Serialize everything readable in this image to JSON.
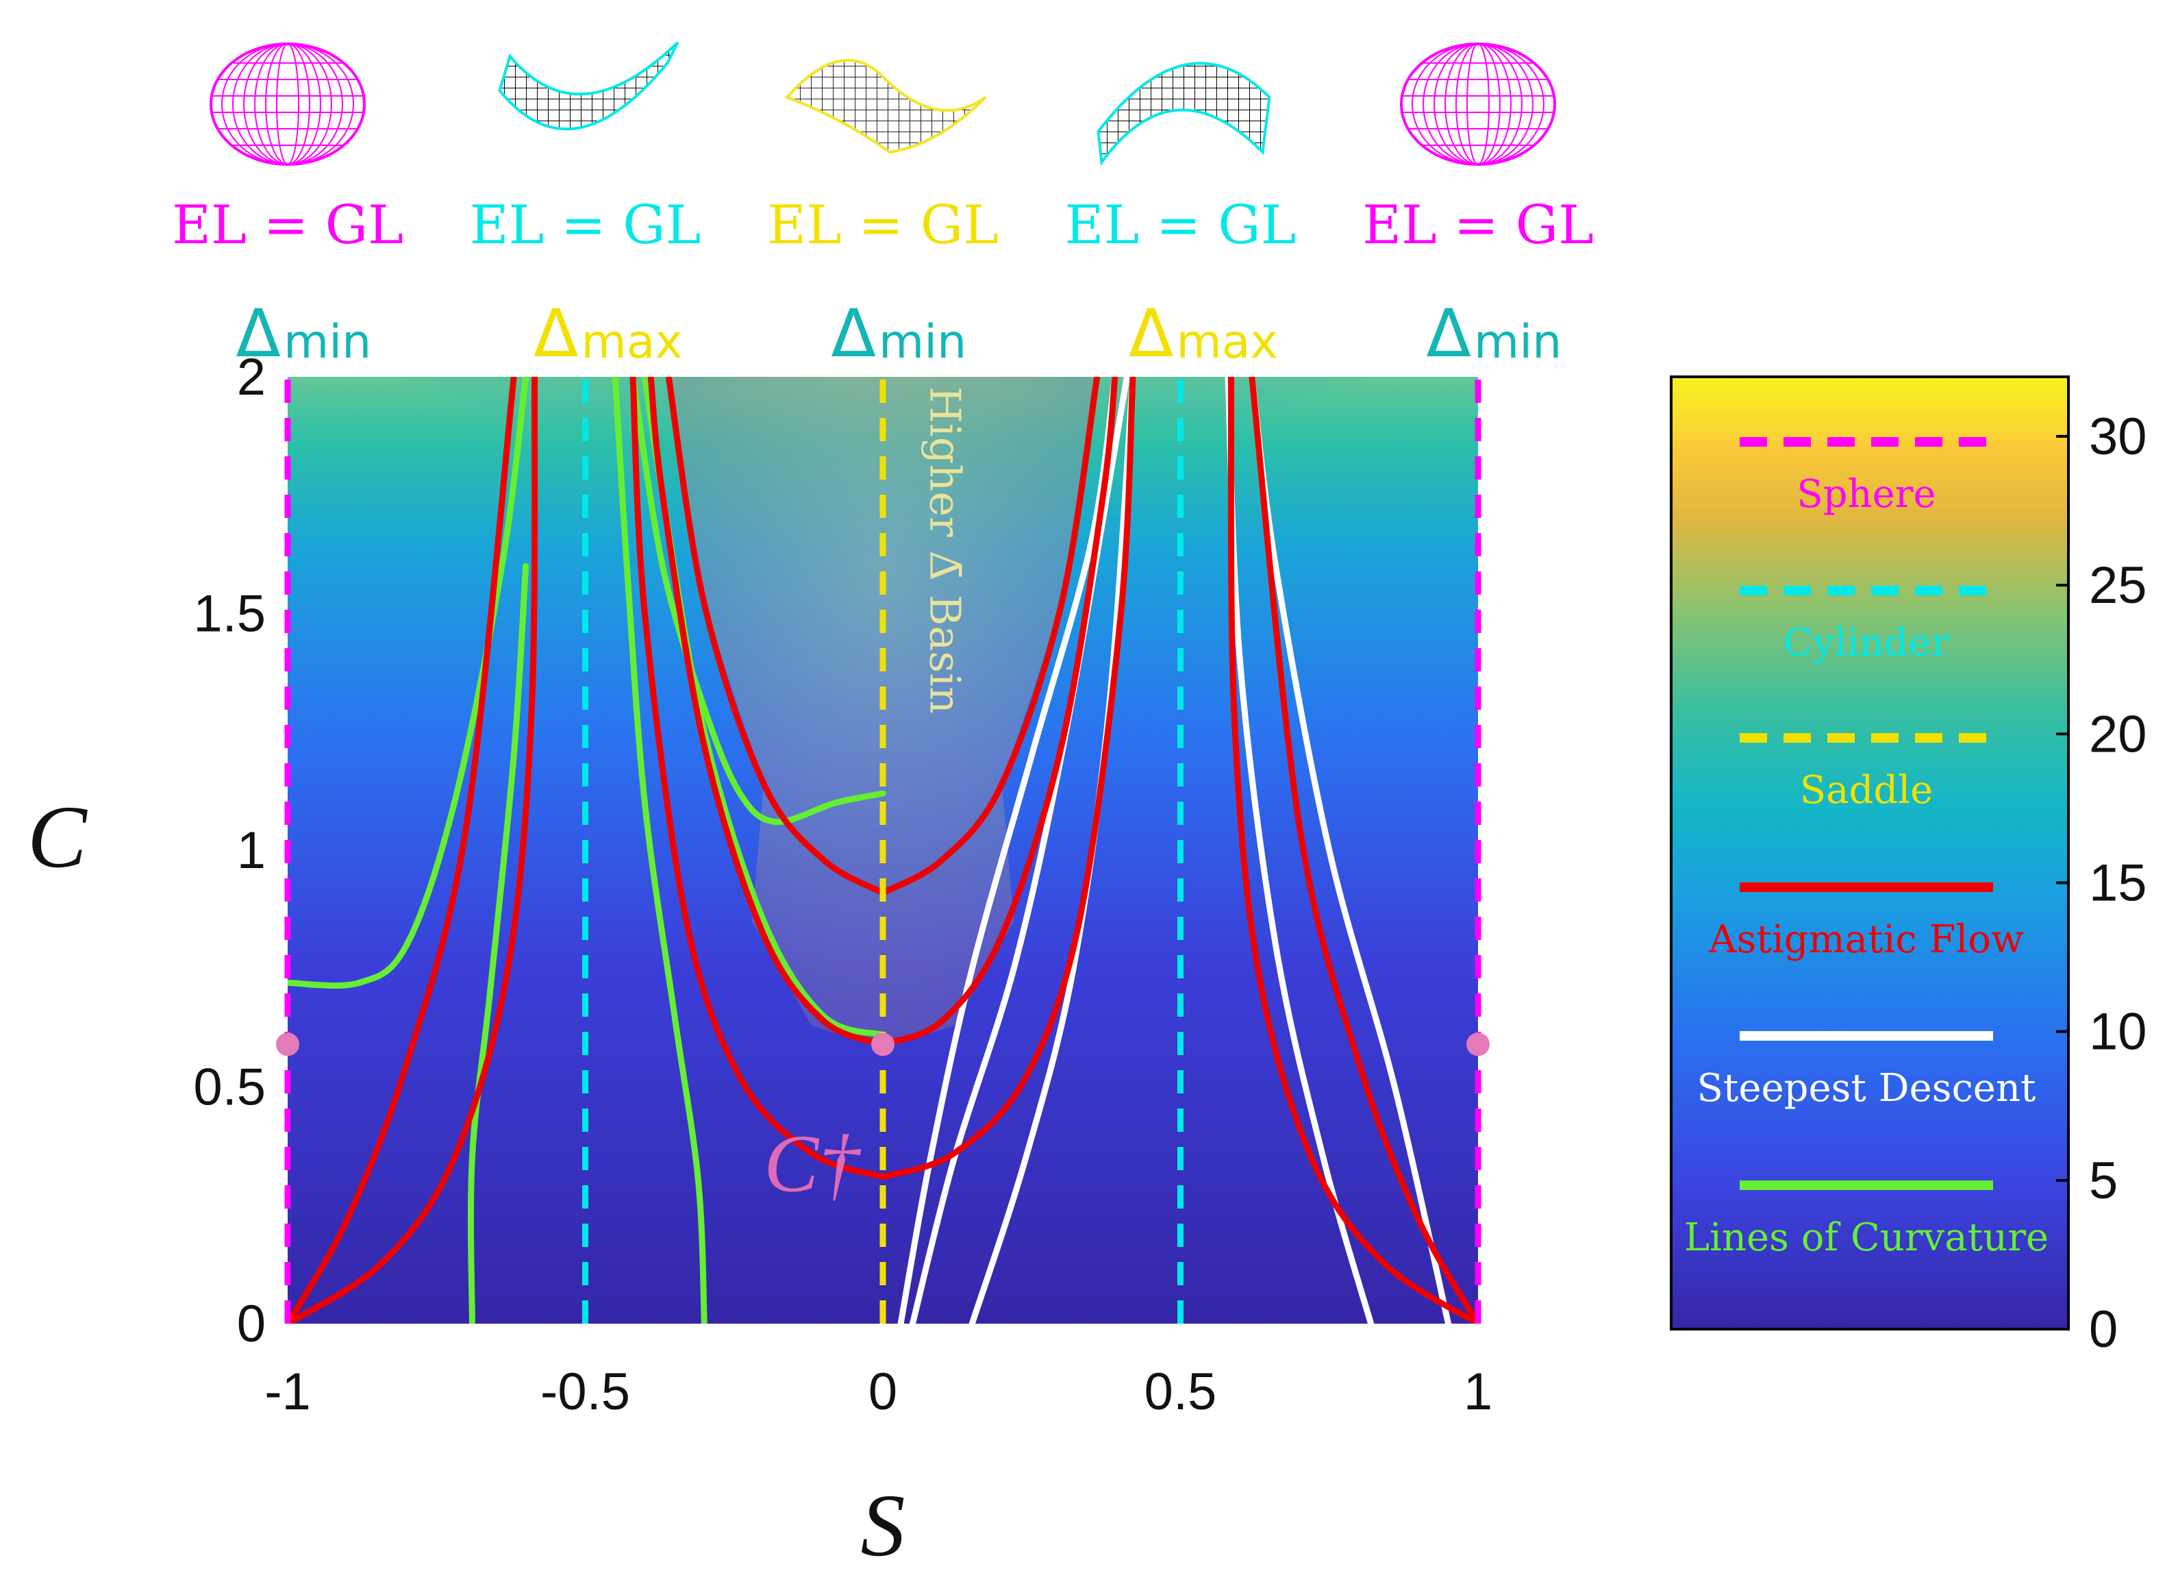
{
  "chart_data": {
    "type": "line",
    "xlabel": "S",
    "ylabel": "C",
    "xlim": [
      -1,
      1
    ],
    "ylim": [
      0,
      2
    ],
    "x_ticks": [
      "-1",
      "-0.5",
      "0",
      "0.5",
      "1"
    ],
    "y_ticks": [
      "0",
      "0.5",
      "1",
      "1.5",
      "2"
    ],
    "colorbar": {
      "range": [
        0,
        32
      ],
      "ticks": [
        "0",
        "5",
        "10",
        "15",
        "20",
        "25",
        "30"
      ]
    },
    "top_shapes": [
      {
        "s": -1,
        "shape": "sphere",
        "equation": "EL = GL",
        "delta": "Δ",
        "delta_sub": "min",
        "color": "#ff00ff",
        "delta_color": "#13b5b5"
      },
      {
        "s": -0.5,
        "shape": "cylinder",
        "equation": "EL = GL",
        "delta": "Δ",
        "delta_sub": "max",
        "color": "#00e8e8",
        "delta_color": "#f2e100"
      },
      {
        "s": 0,
        "shape": "saddle",
        "equation": "EL = GL",
        "delta": "Δ",
        "delta_sub": "min",
        "color": "#f2e100",
        "delta_color": "#13b5b5"
      },
      {
        "s": 0.5,
        "shape": "cylinder",
        "equation": "EL = GL",
        "delta": "Δ",
        "delta_sub": "max",
        "color": "#00e8e8",
        "delta_color": "#f2e100"
      },
      {
        "s": 1,
        "shape": "sphere",
        "equation": "EL = GL",
        "delta": "Δ",
        "delta_sub": "min",
        "color": "#ff00ff",
        "delta_color": "#13b5b5"
      }
    ],
    "vertical_markers": [
      {
        "s": -1,
        "type": "Sphere",
        "color": "#ff00ff"
      },
      {
        "s": -0.5,
        "type": "Cylinder",
        "color": "#00e8e8"
      },
      {
        "s": 0,
        "type": "Saddle",
        "color": "#f2e100"
      },
      {
        "s": 0.5,
        "type": "Cylinder",
        "color": "#00e8e8"
      },
      {
        "s": 1,
        "type": "Sphere",
        "color": "#ff00ff"
      }
    ],
    "critical_points": [
      {
        "s": -1,
        "c": 0.59
      },
      {
        "s": 0,
        "c": 0.59
      },
      {
        "s": 1,
        "c": 0.59
      }
    ],
    "critical_label": "C†",
    "basin_label": "Higher Δ̄ Basin",
    "series": [
      {
        "name": "Astigmatic Flow",
        "color": "#ee0000",
        "curves": [
          [
            [
              0,
              0.91
            ],
            [
              0.1,
              0.98
            ],
            [
              0.2,
              1.14
            ],
            [
              0.3,
              1.52
            ],
            [
              0.36,
              2.0
            ]
          ],
          [
            [
              0,
              0.91
            ],
            [
              -0.1,
              0.98
            ],
            [
              -0.2,
              1.14
            ],
            [
              -0.3,
              1.52
            ],
            [
              -0.36,
              2.0
            ]
          ],
          [
            [
              0,
              0.59
            ],
            [
              0.1,
              0.64
            ],
            [
              0.2,
              0.82
            ],
            [
              0.3,
              1.22
            ],
            [
              0.37,
              1.75
            ],
            [
              0.39,
              2.0
            ]
          ],
          [
            [
              0,
              0.59
            ],
            [
              -0.1,
              0.64
            ],
            [
              -0.2,
              0.82
            ],
            [
              -0.3,
              1.22
            ],
            [
              -0.37,
              1.75
            ],
            [
              -0.39,
              2.0
            ]
          ],
          [
            [
              0,
              0.31
            ],
            [
              0.12,
              0.36
            ],
            [
              0.24,
              0.52
            ],
            [
              0.33,
              0.85
            ],
            [
              0.4,
              1.5
            ],
            [
              0.42,
              2.0
            ]
          ],
          [
            [
              0,
              0.31
            ],
            [
              -0.12,
              0.36
            ],
            [
              -0.24,
              0.52
            ],
            [
              -0.33,
              0.85
            ],
            [
              -0.4,
              1.5
            ],
            [
              -0.42,
              2.0
            ]
          ],
          [
            [
              1,
              0
            ],
            [
              0.84,
              0.13
            ],
            [
              0.72,
              0.35
            ],
            [
              0.63,
              0.75
            ],
            [
              0.59,
              1.3
            ],
            [
              0.585,
              2.0
            ]
          ],
          [
            [
              -1,
              0
            ],
            [
              -0.84,
              0.13
            ],
            [
              -0.72,
              0.35
            ],
            [
              -0.63,
              0.75
            ],
            [
              -0.59,
              1.3
            ],
            [
              -0.585,
              2.0
            ]
          ],
          [
            [
              1,
              0
            ],
            [
              0.9,
              0.22
            ],
            [
              0.8,
              0.55
            ],
            [
              0.7,
              1.05
            ],
            [
              0.62,
              2.0
            ]
          ],
          [
            [
              -1,
              0
            ],
            [
              -0.9,
              0.22
            ],
            [
              -0.8,
              0.55
            ],
            [
              -0.7,
              1.05
            ],
            [
              -0.62,
              2.0
            ]
          ]
        ]
      },
      {
        "name": "Steepest Descent",
        "color": "#ffffff",
        "curves": [
          [
            [
              0.03,
              0
            ],
            [
              0.08,
              0.35
            ],
            [
              0.15,
              0.75
            ],
            [
              0.25,
              1.2
            ],
            [
              0.35,
              1.65
            ],
            [
              0.39,
              2.0
            ]
          ],
          [
            [
              0.05,
              0
            ],
            [
              0.12,
              0.35
            ],
            [
              0.22,
              0.75
            ],
            [
              0.3,
              1.2
            ],
            [
              0.37,
              1.7
            ],
            [
              0.41,
              2.0
            ]
          ],
          [
            [
              0.15,
              0
            ],
            [
              0.24,
              0.35
            ],
            [
              0.32,
              0.75
            ],
            [
              0.38,
              1.3
            ],
            [
              0.42,
              2.0
            ]
          ],
          [
            [
              0.82,
              0
            ],
            [
              0.74,
              0.35
            ],
            [
              0.66,
              0.8
            ],
            [
              0.6,
              1.4
            ],
            [
              0.58,
              2.0
            ]
          ],
          [
            [
              0.95,
              0
            ],
            [
              0.86,
              0.5
            ],
            [
              0.75,
              1.0
            ],
            [
              0.66,
              1.6
            ],
            [
              0.62,
              2.0
            ]
          ]
        ]
      },
      {
        "name": "Lines of Curvature",
        "color": "#66ee33",
        "curves": [
          [
            [
              -1,
              0.72
            ],
            [
              -0.88,
              0.72
            ],
            [
              -0.8,
              0.8
            ],
            [
              -0.72,
              1.1
            ],
            [
              -0.64,
              1.6
            ],
            [
              -0.6,
              2.0
            ]
          ],
          [
            [
              -0.69,
              0
            ],
            [
              -0.69,
              0.35
            ],
            [
              -0.66,
              0.7
            ],
            [
              -0.62,
              1.2
            ],
            [
              -0.6,
              1.6
            ]
          ],
          [
            [
              -0.3,
              0
            ],
            [
              -0.31,
              0.3
            ],
            [
              -0.35,
              0.65
            ],
            [
              -0.4,
              1.1
            ],
            [
              -0.43,
              1.6
            ],
            [
              -0.45,
              2.0
            ]
          ],
          [
            [
              0,
              1.12
            ],
            [
              -0.08,
              1.1
            ],
            [
              -0.18,
              1.06
            ],
            [
              -0.24,
              1.12
            ],
            [
              -0.3,
              1.3
            ],
            [
              -0.37,
              1.6
            ],
            [
              -0.42,
              2.0
            ]
          ],
          [
            [
              0,
              0.61
            ],
            [
              -0.1,
              0.65
            ],
            [
              -0.2,
              0.85
            ],
            [
              -0.3,
              1.25
            ],
            [
              -0.37,
              1.75
            ],
            [
              -0.4,
              2.0
            ]
          ]
        ]
      }
    ],
    "legend": [
      {
        "label": "Sphere",
        "style": "dashed",
        "color": "#ff00ff"
      },
      {
        "label": "Cylinder",
        "style": "dashed",
        "color": "#00e8e8"
      },
      {
        "label": "Saddle",
        "style": "dashed",
        "color": "#f2e100"
      },
      {
        "label": "Astigmatic Flow",
        "style": "solid",
        "color": "#ee0000"
      },
      {
        "label": "Steepest Descent",
        "style": "solid",
        "color": "#ffffff"
      },
      {
        "label": "Lines of Curvature",
        "style": "solid",
        "color": "#66ee33"
      }
    ]
  }
}
